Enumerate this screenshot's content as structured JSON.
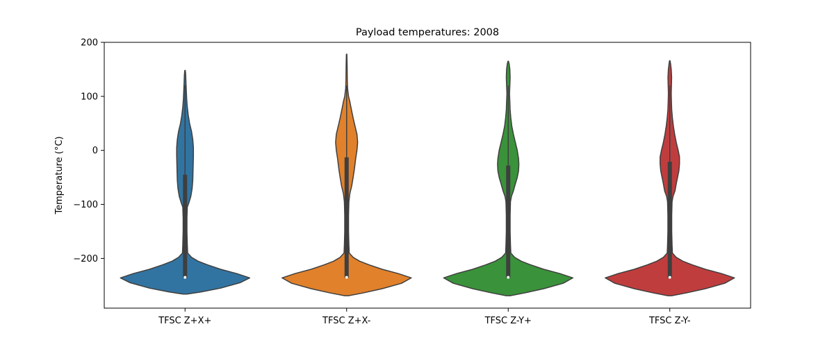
{
  "chart_data": {
    "type": "violin",
    "title": "Payload temperatures: 2008",
    "xlabel": "",
    "ylabel": "Temperature (°C)",
    "ylim": [
      -292,
      200
    ],
    "yticks": [
      200,
      100,
      0,
      -100,
      -200
    ],
    "categories": [
      "TFSC Z+X+",
      "TFSC Z+X-",
      "TFSC Z-Y+",
      "TFSC Z-Y-"
    ],
    "grid": false,
    "series": [
      {
        "color": "#3274a1",
        "box": {
          "whisker_low": -236,
          "q1": -236,
          "median": -235,
          "q3": -45,
          "whisker_high": 120,
          "max": 148
        },
        "profile": [
          [
            -266,
            0.03
          ],
          [
            -262,
            0.25
          ],
          [
            -255,
            0.55
          ],
          [
            -245,
            0.85
          ],
          [
            -236,
            1.0
          ],
          [
            -228,
            0.8
          ],
          [
            -220,
            0.55
          ],
          [
            -212,
            0.35
          ],
          [
            -205,
            0.2
          ],
          [
            -198,
            0.1
          ],
          [
            -190,
            0.04
          ],
          [
            -175,
            0.035
          ],
          [
            -150,
            0.03
          ],
          [
            -125,
            0.03
          ],
          [
            -105,
            0.035
          ],
          [
            -97,
            0.06
          ],
          [
            -85,
            0.09
          ],
          [
            -70,
            0.11
          ],
          [
            -55,
            0.12
          ],
          [
            -30,
            0.125
          ],
          [
            -10,
            0.13
          ],
          [
            5,
            0.13
          ],
          [
            20,
            0.12
          ],
          [
            35,
            0.1
          ],
          [
            50,
            0.07
          ],
          [
            65,
            0.05
          ],
          [
            80,
            0.035
          ],
          [
            95,
            0.025
          ],
          [
            110,
            0.02
          ],
          [
            125,
            0.015
          ],
          [
            140,
            0.01
          ],
          [
            148,
            0.004
          ]
        ]
      },
      {
        "color": "#e1812c",
        "box": {
          "whisker_low": -236,
          "q1": -236,
          "median": -235,
          "q3": -13,
          "whisker_high": 120,
          "max": 178
        },
        "profile": [
          [
            -269,
            0.03
          ],
          [
            -264,
            0.25
          ],
          [
            -256,
            0.55
          ],
          [
            -246,
            0.85
          ],
          [
            -236,
            1.0
          ],
          [
            -228,
            0.8
          ],
          [
            -220,
            0.55
          ],
          [
            -212,
            0.35
          ],
          [
            -205,
            0.2
          ],
          [
            -198,
            0.1
          ],
          [
            -190,
            0.04
          ],
          [
            -175,
            0.035
          ],
          [
            -150,
            0.03
          ],
          [
            -120,
            0.03
          ],
          [
            -95,
            0.035
          ],
          [
            -80,
            0.05
          ],
          [
            -65,
            0.08
          ],
          [
            -50,
            0.1
          ],
          [
            -35,
            0.12
          ],
          [
            -15,
            0.14
          ],
          [
            0,
            0.16
          ],
          [
            15,
            0.17
          ],
          [
            30,
            0.16
          ],
          [
            45,
            0.13
          ],
          [
            60,
            0.1
          ],
          [
            75,
            0.075
          ],
          [
            90,
            0.05
          ],
          [
            100,
            0.03
          ],
          [
            115,
            0.015
          ],
          [
            130,
            0.01
          ],
          [
            155,
            0.008
          ],
          [
            178,
            0.004
          ]
        ]
      },
      {
        "color": "#3a923a",
        "box": {
          "whisker_low": -236,
          "q1": -236,
          "median": -235,
          "q3": -28,
          "whisker_high": 120,
          "max": 165
        },
        "profile": [
          [
            -269,
            0.03
          ],
          [
            -264,
            0.25
          ],
          [
            -256,
            0.55
          ],
          [
            -246,
            0.85
          ],
          [
            -236,
            1.0
          ],
          [
            -228,
            0.8
          ],
          [
            -220,
            0.55
          ],
          [
            -212,
            0.35
          ],
          [
            -205,
            0.2
          ],
          [
            -198,
            0.1
          ],
          [
            -190,
            0.04
          ],
          [
            -175,
            0.035
          ],
          [
            -150,
            0.03
          ],
          [
            -120,
            0.03
          ],
          [
            -95,
            0.035
          ],
          [
            -85,
            0.05
          ],
          [
            -75,
            0.08
          ],
          [
            -62,
            0.11
          ],
          [
            -50,
            0.14
          ],
          [
            -38,
            0.16
          ],
          [
            -26,
            0.165
          ],
          [
            -15,
            0.16
          ],
          [
            0,
            0.14
          ],
          [
            15,
            0.11
          ],
          [
            30,
            0.08
          ],
          [
            45,
            0.055
          ],
          [
            60,
            0.04
          ],
          [
            75,
            0.03
          ],
          [
            90,
            0.025
          ],
          [
            105,
            0.02
          ],
          [
            120,
            0.025
          ],
          [
            135,
            0.03
          ],
          [
            150,
            0.025
          ],
          [
            160,
            0.015
          ],
          [
            165,
            0.004
          ]
        ]
      },
      {
        "color": "#c03d3e",
        "box": {
          "whisker_low": -236,
          "q1": -236,
          "median": -235,
          "q3": -21,
          "whisker_high": 120,
          "max": 166
        },
        "profile": [
          [
            -269,
            0.03
          ],
          [
            -264,
            0.25
          ],
          [
            -256,
            0.55
          ],
          [
            -246,
            0.85
          ],
          [
            -236,
            1.0
          ],
          [
            -228,
            0.8
          ],
          [
            -220,
            0.55
          ],
          [
            -212,
            0.35
          ],
          [
            -205,
            0.2
          ],
          [
            -198,
            0.1
          ],
          [
            -190,
            0.04
          ],
          [
            -175,
            0.035
          ],
          [
            -150,
            0.03
          ],
          [
            -120,
            0.03
          ],
          [
            -95,
            0.035
          ],
          [
            -85,
            0.05
          ],
          [
            -75,
            0.08
          ],
          [
            -62,
            0.1
          ],
          [
            -50,
            0.12
          ],
          [
            -38,
            0.14
          ],
          [
            -25,
            0.15
          ],
          [
            -12,
            0.15
          ],
          [
            0,
            0.13
          ],
          [
            15,
            0.1
          ],
          [
            30,
            0.075
          ],
          [
            45,
            0.055
          ],
          [
            60,
            0.04
          ],
          [
            75,
            0.03
          ],
          [
            90,
            0.025
          ],
          [
            105,
            0.022
          ],
          [
            120,
            0.025
          ],
          [
            135,
            0.028
          ],
          [
            150,
            0.022
          ],
          [
            160,
            0.012
          ],
          [
            166,
            0.004
          ]
        ]
      }
    ]
  }
}
